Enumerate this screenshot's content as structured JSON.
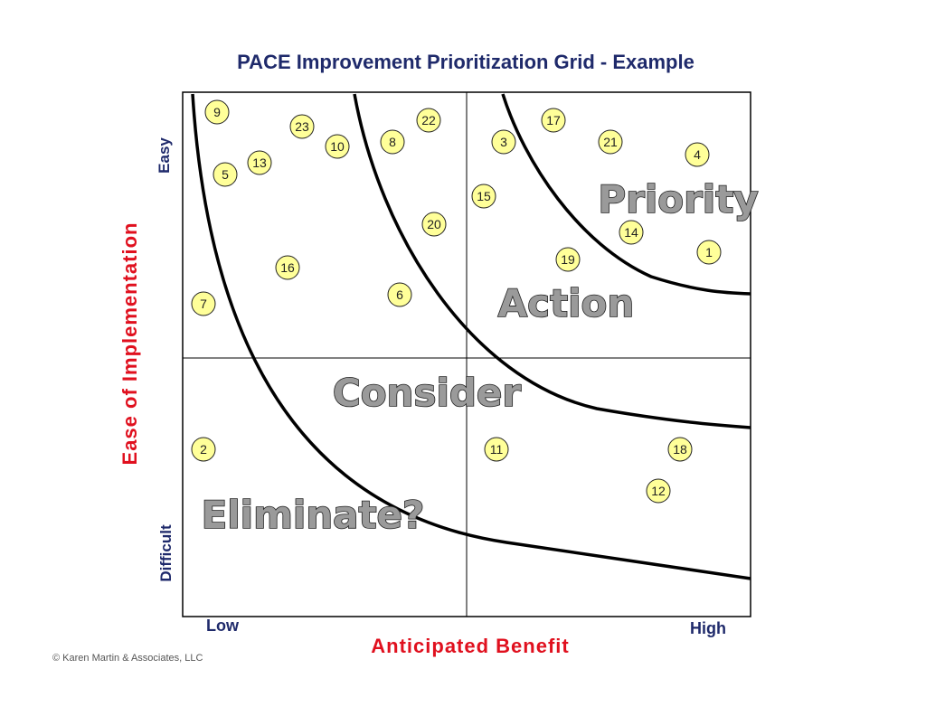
{
  "title": "PACE Improvement Prioritization Grid - Example",
  "axis": {
    "y_label": "Ease of Implementation",
    "y_top": "Easy",
    "y_bottom": "Difficult",
    "x_label": "Anticipated Benefit",
    "x_low": "Low",
    "x_high": "High"
  },
  "zones": {
    "priority": "Priority",
    "action": "Action",
    "consider": "Consider",
    "eliminate": "Eliminate?"
  },
  "copyright": "© Karen Martin & Associates, LLC",
  "colors": {
    "title": "#1f2a6b",
    "axis_label": "#e0101e",
    "marker_fill": "#ffff99",
    "zone_label_fill": "#9a9a9a"
  },
  "items": [
    {
      "id": "9"
    },
    {
      "id": "23"
    },
    {
      "id": "10"
    },
    {
      "id": "8"
    },
    {
      "id": "22"
    },
    {
      "id": "3"
    },
    {
      "id": "17"
    },
    {
      "id": "21"
    },
    {
      "id": "4"
    },
    {
      "id": "13"
    },
    {
      "id": "5"
    },
    {
      "id": "15"
    },
    {
      "id": "20"
    },
    {
      "id": "14"
    },
    {
      "id": "1"
    },
    {
      "id": "19"
    },
    {
      "id": "16"
    },
    {
      "id": "6"
    },
    {
      "id": "7"
    },
    {
      "id": "2"
    },
    {
      "id": "11"
    },
    {
      "id": "18"
    },
    {
      "id": "12"
    }
  ]
}
